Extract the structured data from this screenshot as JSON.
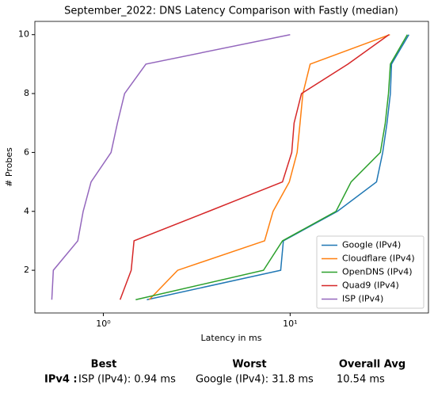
{
  "chart_data": {
    "type": "line",
    "title": "September_2022: DNS Latency Comparison with Fastly (median)",
    "xlabel": "Latency in ms",
    "ylabel": "# Probes",
    "xscale": "log",
    "xlim": [
      0.43,
      55
    ],
    "ylim": [
      0.55,
      10.45
    ],
    "xticks": [
      {
        "value": 1,
        "label": "10⁰"
      },
      {
        "value": 10,
        "label": "10¹"
      }
    ],
    "yticks": [
      2,
      4,
      6,
      8,
      10
    ],
    "legend": "lower right",
    "series": [
      {
        "name": "Google (IPv4)",
        "color": "#1f77b4",
        "x": [
          1.71,
          8.9,
          9.2,
          17.9,
          29,
          31.3,
          33,
          34.4,
          34.9,
          43.2
        ],
        "values": [
          1,
          2,
          3,
          4,
          5,
          6,
          7,
          8,
          9,
          10
        ]
      },
      {
        "name": "Cloudflare (IPv4)",
        "color": "#ff7f0e",
        "x": [
          1.76,
          2.5,
          7.3,
          8.1,
          9.9,
          10.9,
          11.3,
          11.7,
          12.8,
          34.2
        ],
        "values": [
          1,
          2,
          3,
          4,
          5,
          6,
          7,
          8,
          9,
          10
        ]
      },
      {
        "name": "OpenDNS (IPv4)",
        "color": "#2ca02c",
        "x": [
          1.49,
          7.2,
          9.1,
          17.6,
          21.2,
          30.4,
          32.3,
          33.6,
          34.4,
          42.4
        ],
        "values": [
          1,
          2,
          3,
          4,
          5,
          6,
          7,
          8,
          9,
          10
        ]
      },
      {
        "name": "Quad9 (IPv4)",
        "color": "#d62728",
        "x": [
          1.23,
          1.41,
          1.46,
          3.66,
          9.1,
          10.2,
          10.5,
          11.5,
          20.4,
          33.8
        ],
        "values": [
          1,
          2,
          3,
          4,
          5,
          6,
          7,
          8,
          9,
          10
        ]
      },
      {
        "name": "ISP (IPv4)",
        "color": "#9467bd",
        "x": [
          0.53,
          0.54,
          0.73,
          0.78,
          0.86,
          1.1,
          1.19,
          1.3,
          1.69,
          10
        ],
        "values": [
          1,
          2,
          3,
          4,
          5,
          6,
          7,
          8,
          9,
          10
        ]
      }
    ]
  },
  "summary": {
    "headers": [
      "Best",
      "Worst",
      "Overall Avg"
    ],
    "row_label": "IPv4 :",
    "row": [
      "ISP (IPv4): 0.94 ms",
      "Google (IPv4): 31.8 ms",
      "10.54 ms"
    ]
  }
}
